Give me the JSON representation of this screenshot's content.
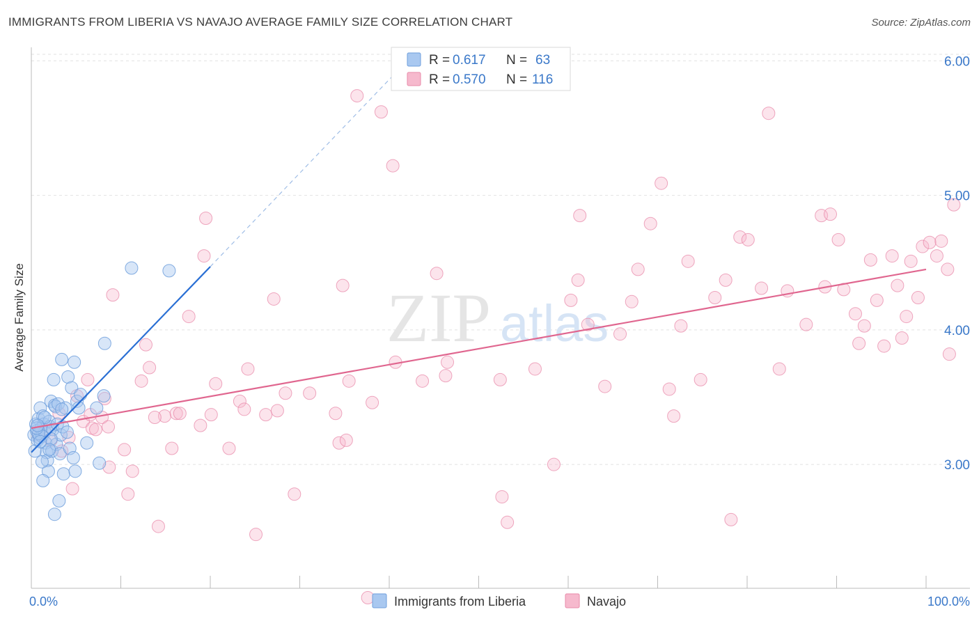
{
  "title": "IMMIGRANTS FROM LIBERIA VS NAVAJO AVERAGE FAMILY SIZE CORRELATION CHART",
  "source": "Source: ZipAtlas.com",
  "watermark": {
    "part1": "ZIP",
    "part2": "atlas"
  },
  "colors": {
    "liberia_fill": "#a9c8f0",
    "liberia_stroke": "#6f9fdc",
    "liberia_line": "#2a6fd4",
    "navajo_fill": "#f6b9cd",
    "navajo_stroke": "#e88aa9",
    "navajo_line": "#e0668f",
    "axis_value": "#3a78c9"
  },
  "chart_data": {
    "type": "scatter",
    "title": "IMMIGRANTS FROM LIBERIA VS NAVAJO AVERAGE FAMILY SIZE CORRELATION CHART",
    "xlabel": "",
    "ylabel": "Average Family Size",
    "xlim": [
      0,
      100
    ],
    "ylim": [
      2.08,
      6.1
    ],
    "x_tick_labels": [
      "0.0%",
      "100.0%"
    ],
    "y_ticks": [
      3.0,
      4.0,
      5.0,
      6.0
    ],
    "y_tick_labels": [
      "3.00",
      "4.00",
      "5.00",
      "6.00"
    ],
    "grid": true,
    "legend_position": "top-center",
    "stats": [
      {
        "r_label": "R =",
        "r_value": "0.617",
        "n_label": "N =",
        "n_value": "63"
      },
      {
        "r_label": "R =",
        "r_value": "0.570",
        "n_label": "N =",
        "n_value": "116"
      }
    ],
    "series": [
      {
        "name": "Immigrants from Liberia",
        "trend": {
          "x": [
            0,
            20
          ],
          "y": [
            3.09,
            4.47
          ],
          "dashed_to": {
            "x": 42,
            "y": 6.0
          }
        },
        "points": [
          [
            0.3,
            3.22
          ],
          [
            0.5,
            3.3
          ],
          [
            0.6,
            3.25
          ],
          [
            0.7,
            3.18
          ],
          [
            0.8,
            3.34
          ],
          [
            0.9,
            3.2
          ],
          [
            1.0,
            3.42
          ],
          [
            1.1,
            3.27
          ],
          [
            1.2,
            3.21
          ],
          [
            1.3,
            3.36
          ],
          [
            1.4,
            3.3
          ],
          [
            1.5,
            3.24
          ],
          [
            1.6,
            3.16
          ],
          [
            1.7,
            3.09
          ],
          [
            1.8,
            3.03
          ],
          [
            1.9,
            2.95
          ],
          [
            2.0,
            3.32
          ],
          [
            2.1,
            3.28
          ],
          [
            2.2,
            3.47
          ],
          [
            2.3,
            3.1
          ],
          [
            2.4,
            3.26
          ],
          [
            2.5,
            3.63
          ],
          [
            2.6,
            3.44
          ],
          [
            2.7,
            3.43
          ],
          [
            2.8,
            3.15
          ],
          [
            2.9,
            3.3
          ],
          [
            3.0,
            3.45
          ],
          [
            3.1,
            2.73
          ],
          [
            3.2,
            3.08
          ],
          [
            3.3,
            3.22
          ],
          [
            3.4,
            3.78
          ],
          [
            3.5,
            3.28
          ],
          [
            3.6,
            2.93
          ],
          [
            3.8,
            3.42
          ],
          [
            4.0,
            3.24
          ],
          [
            4.1,
            3.65
          ],
          [
            4.3,
            3.12
          ],
          [
            4.5,
            3.57
          ],
          [
            4.7,
            3.05
          ],
          [
            4.8,
            3.76
          ],
          [
            4.9,
            2.95
          ],
          [
            5.1,
            3.47
          ],
          [
            5.3,
            3.42
          ],
          [
            5.5,
            3.52
          ],
          [
            6.2,
            3.16
          ],
          [
            7.3,
            3.42
          ],
          [
            7.6,
            3.01
          ],
          [
            8.1,
            3.51
          ],
          [
            8.2,
            3.9
          ],
          [
            11.2,
            4.46
          ],
          [
            15.4,
            4.44
          ],
          [
            0.4,
            3.1
          ],
          [
            1.3,
            2.88
          ],
          [
            2.6,
            2.63
          ],
          [
            1.2,
            3.02
          ],
          [
            2.2,
            3.19
          ],
          [
            0.8,
            3.23
          ],
          [
            1.5,
            3.35
          ],
          [
            0.6,
            3.27
          ],
          [
            2.0,
            3.11
          ],
          [
            3.4,
            3.41
          ],
          [
            1.0,
            3.17
          ],
          [
            0.7,
            3.29
          ]
        ]
      },
      {
        "name": "Navajo",
        "trend": {
          "x": [
            0,
            100
          ],
          "y": [
            3.27,
            4.45
          ]
        },
        "points": [
          [
            0.8,
            3.22
          ],
          [
            1.5,
            3.26
          ],
          [
            2.2,
            3.18
          ],
          [
            3.1,
            3.38
          ],
          [
            3.4,
            3.1
          ],
          [
            4.2,
            3.2
          ],
          [
            4.6,
            2.82
          ],
          [
            5.1,
            3.51
          ],
          [
            5.8,
            3.32
          ],
          [
            6.3,
            3.63
          ],
          [
            6.8,
            3.27
          ],
          [
            7.2,
            3.26
          ],
          [
            7.9,
            3.35
          ],
          [
            8.2,
            3.49
          ],
          [
            8.6,
            3.28
          ],
          [
            8.7,
            2.98
          ],
          [
            9.1,
            4.26
          ],
          [
            10.4,
            3.11
          ],
          [
            10.8,
            2.78
          ],
          [
            11.3,
            2.95
          ],
          [
            12.3,
            3.62
          ],
          [
            12.8,
            3.89
          ],
          [
            13.2,
            3.72
          ],
          [
            14.2,
            2.54
          ],
          [
            14.9,
            3.36
          ],
          [
            15.7,
            3.12
          ],
          [
            16.2,
            3.38
          ],
          [
            17.6,
            4.1
          ],
          [
            18.9,
            3.29
          ],
          [
            19.3,
            4.55
          ],
          [
            19.5,
            4.83
          ],
          [
            20.1,
            3.37
          ],
          [
            20.6,
            3.6
          ],
          [
            22.1,
            3.12
          ],
          [
            23.3,
            3.47
          ],
          [
            23.8,
            3.41
          ],
          [
            24.2,
            3.71
          ],
          [
            25.1,
            2.48
          ],
          [
            26.2,
            3.37
          ],
          [
            27.1,
            4.23
          ],
          [
            27.5,
            3.4
          ],
          [
            28.4,
            3.53
          ],
          [
            29.4,
            2.78
          ],
          [
            31.1,
            3.53
          ],
          [
            34.4,
            3.16
          ],
          [
            34.8,
            4.33
          ],
          [
            35.2,
            3.18
          ],
          [
            35.5,
            3.62
          ],
          [
            36.4,
            5.74
          ],
          [
            37.6,
            2.01
          ],
          [
            38.1,
            3.46
          ],
          [
            39.1,
            5.62
          ],
          [
            40.4,
            5.22
          ],
          [
            40.7,
            3.76
          ],
          [
            43.7,
            3.62
          ],
          [
            45.3,
            4.42
          ],
          [
            46.3,
            3.66
          ],
          [
            46.5,
            3.76
          ],
          [
            52.4,
            3.63
          ],
          [
            52.6,
            2.76
          ],
          [
            53.2,
            2.57
          ],
          [
            56.3,
            3.71
          ],
          [
            58.4,
            3.0
          ],
          [
            60.3,
            4.22
          ],
          [
            61.1,
            4.37
          ],
          [
            61.3,
            4.85
          ],
          [
            62.2,
            4.04
          ],
          [
            64.1,
            3.58
          ],
          [
            65.8,
            3.97
          ],
          [
            67.1,
            4.21
          ],
          [
            67.8,
            4.45
          ],
          [
            69.2,
            4.79
          ],
          [
            70.4,
            5.09
          ],
          [
            71.3,
            3.56
          ],
          [
            71.8,
            3.36
          ],
          [
            72.6,
            4.03
          ],
          [
            73.4,
            4.51
          ],
          [
            74.8,
            3.63
          ],
          [
            76.4,
            4.24
          ],
          [
            77.6,
            4.37
          ],
          [
            78.2,
            2.59
          ],
          [
            79.2,
            4.69
          ],
          [
            80.1,
            4.67
          ],
          [
            81.6,
            4.31
          ],
          [
            82.4,
            5.61
          ],
          [
            83.6,
            3.71
          ],
          [
            84.5,
            4.29
          ],
          [
            86.6,
            4.04
          ],
          [
            88.3,
            4.85
          ],
          [
            88.7,
            4.32
          ],
          [
            89.3,
            4.86
          ],
          [
            90.2,
            4.67
          ],
          [
            90.8,
            4.3
          ],
          [
            92.1,
            4.12
          ],
          [
            92.5,
            3.9
          ],
          [
            93.1,
            4.03
          ],
          [
            93.8,
            4.52
          ],
          [
            94.5,
            4.22
          ],
          [
            95.3,
            3.88
          ],
          [
            96.2,
            4.55
          ],
          [
            96.8,
            4.33
          ],
          [
            97.3,
            3.94
          ],
          [
            97.8,
            4.1
          ],
          [
            98.3,
            4.51
          ],
          [
            99.1,
            4.24
          ],
          [
            99.6,
            4.62
          ],
          [
            100.4,
            4.65
          ],
          [
            101.2,
            4.55
          ],
          [
            101.7,
            4.66
          ],
          [
            102.4,
            4.45
          ],
          [
            102.6,
            3.82
          ],
          [
            103.1,
            4.93
          ],
          [
            16.6,
            3.38
          ],
          [
            13.8,
            3.35
          ],
          [
            6.6,
            3.37
          ],
          [
            34.0,
            3.38
          ]
        ]
      }
    ]
  },
  "legend": {
    "items": [
      {
        "label": "Immigrants from Liberia"
      },
      {
        "label": "Navajo"
      }
    ]
  }
}
